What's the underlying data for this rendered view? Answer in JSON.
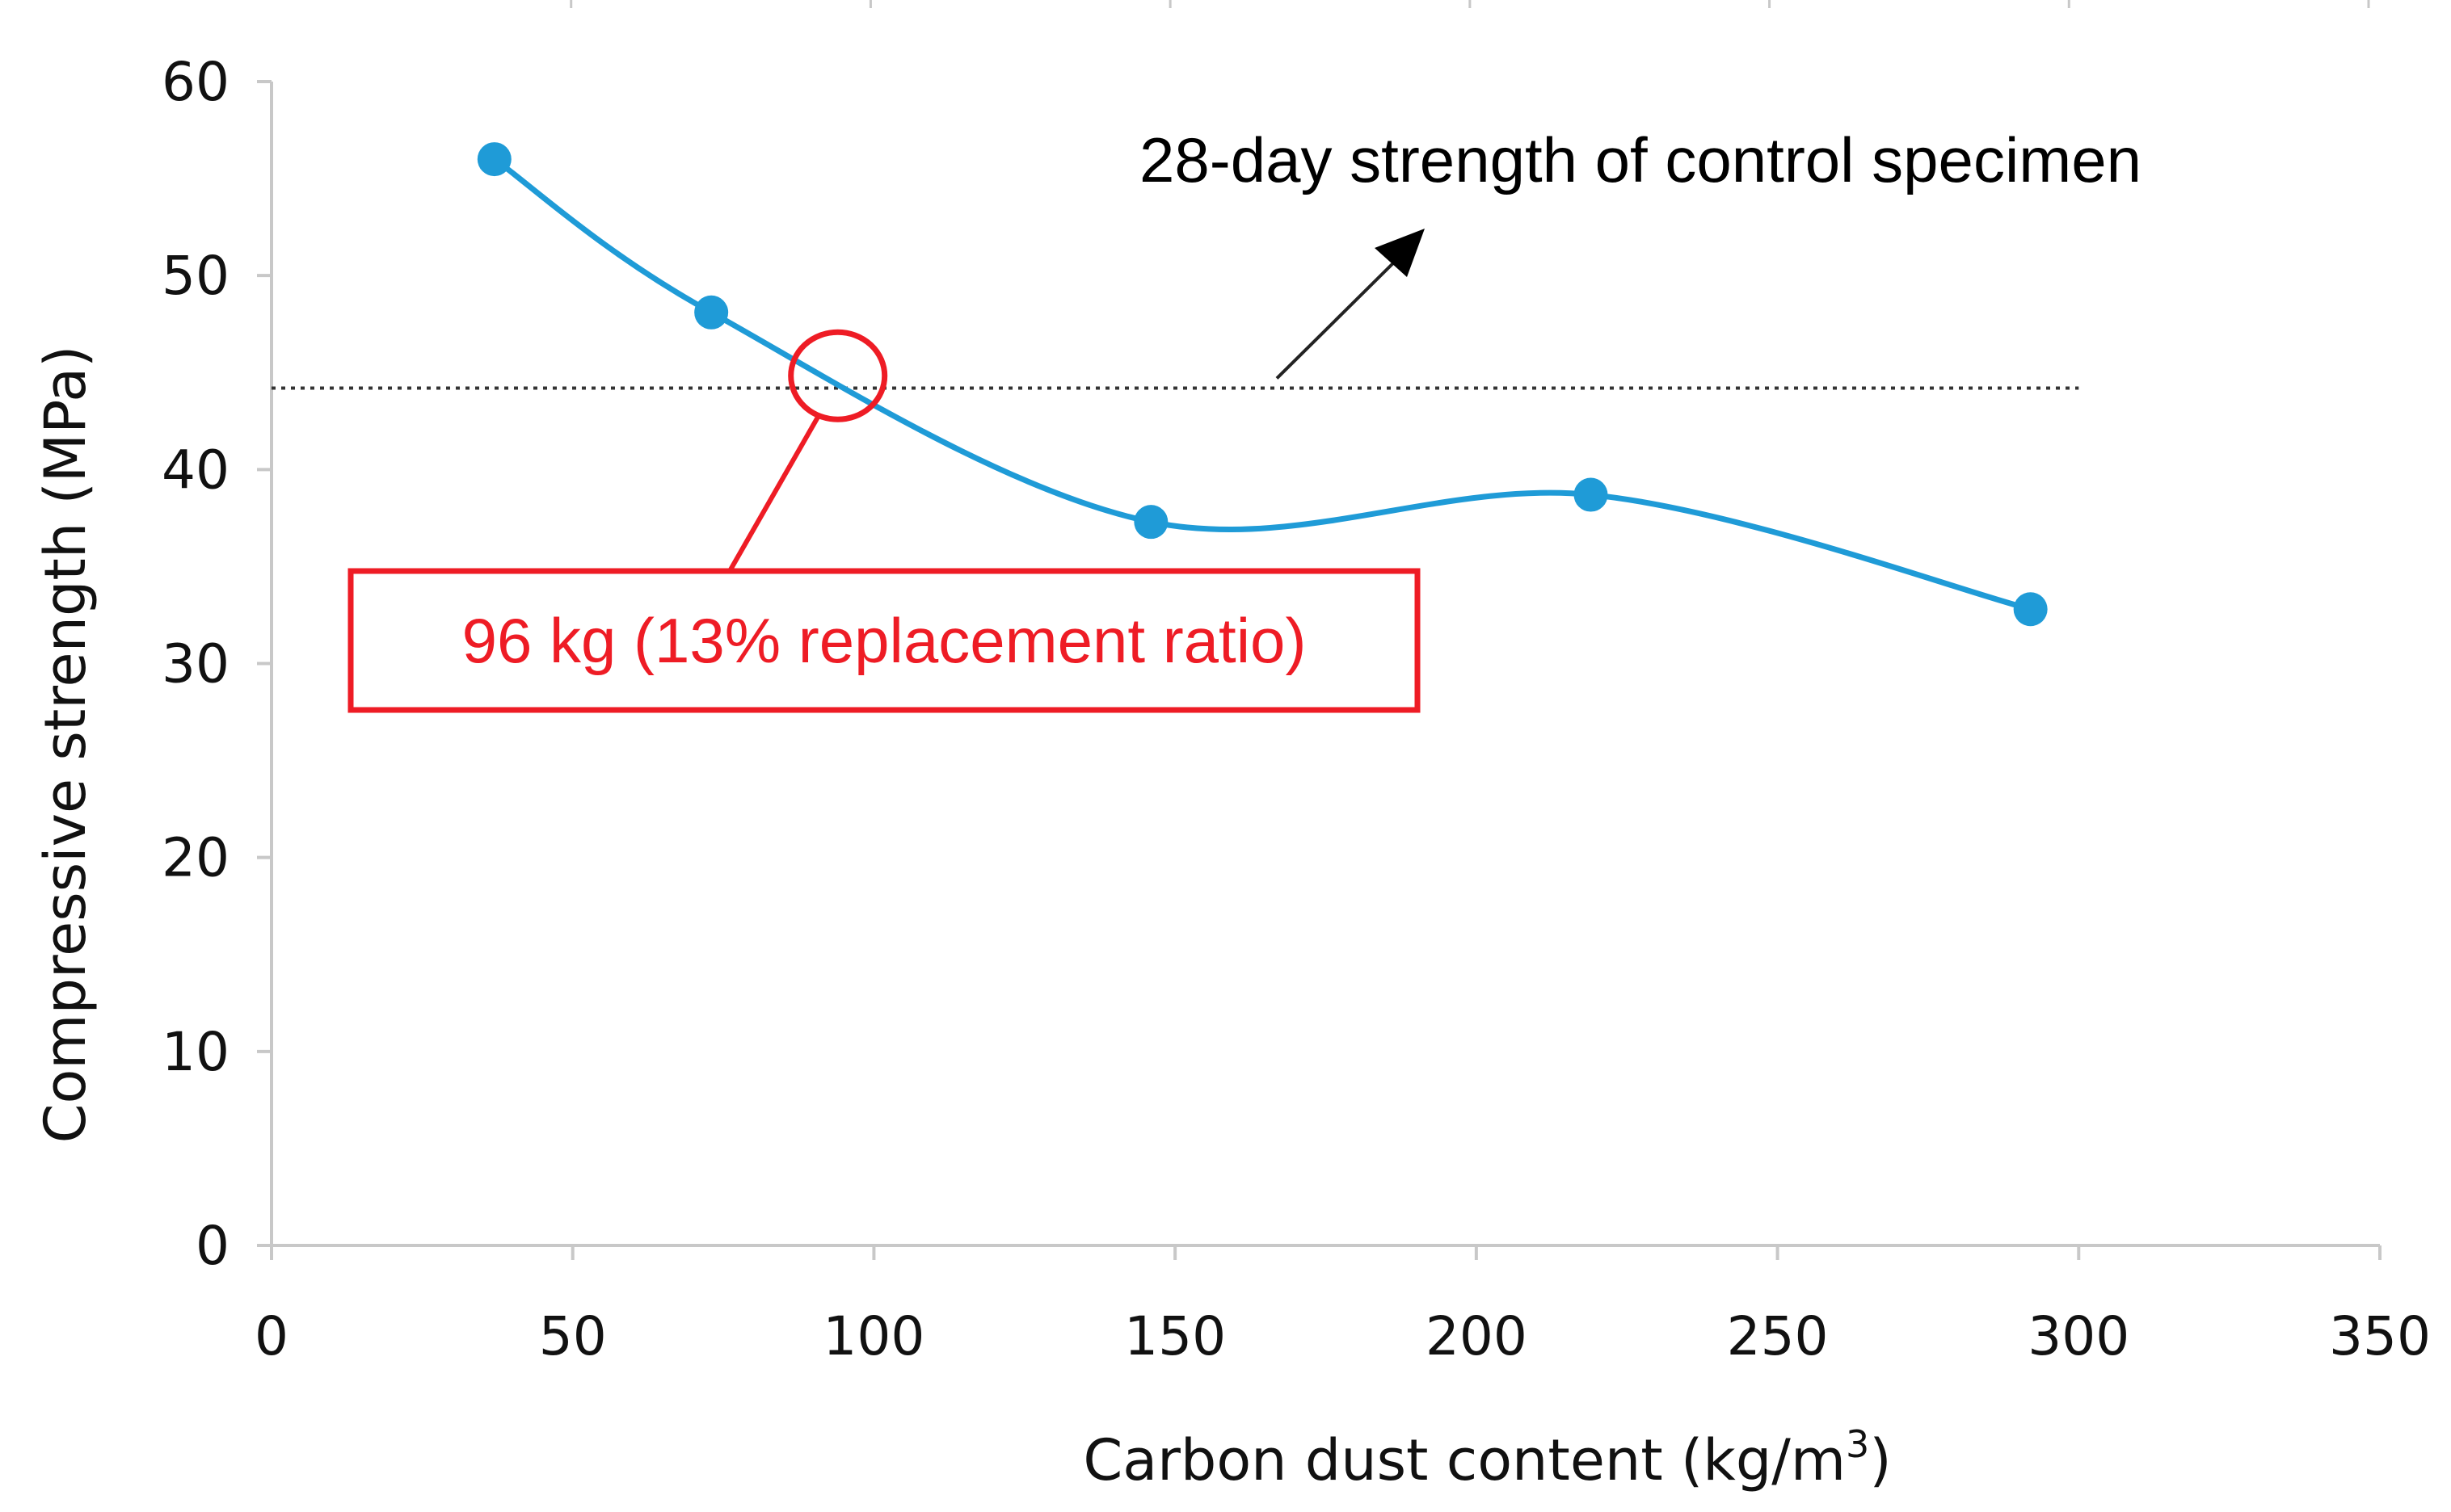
{
  "chart_data": {
    "type": "line",
    "title": "",
    "xlabel": "Carbon dust content (kg/m",
    "xlabel_superscript": "3",
    "xlabel_suffix": ")",
    "ylabel": "Compressive strength (MPa)",
    "xlim": [
      0,
      350
    ],
    "ylim": [
      0,
      60
    ],
    "x_ticks": [
      0,
      50,
      100,
      150,
      200,
      250,
      300,
      350
    ],
    "y_ticks": [
      0,
      10,
      20,
      30,
      40,
      50,
      60
    ],
    "x_tick_labels": [
      "0",
      "50",
      "100",
      "150",
      "200",
      "250",
      "300",
      "350"
    ],
    "y_tick_labels": [
      "0",
      "10",
      "20",
      "30",
      "40",
      "50",
      "60"
    ],
    "grid": false,
    "smooth": true,
    "series": [
      {
        "name": "Compressive strength",
        "color": "#1f9bd7",
        "x": [
          37,
          73,
          146,
          219,
          292
        ],
        "y": [
          56.0,
          48.1,
          37.3,
          38.7,
          32.8
        ]
      }
    ],
    "reference_line": {
      "label": "28-day strength of control specimen",
      "y": 44.2,
      "x_range": [
        0,
        300
      ],
      "style": "dotted",
      "color": "#333333"
    },
    "callout": {
      "label": "96 kg (13% replacement ratio)",
      "x": 94,
      "y": 44.5,
      "color": "#ee1c25"
    }
  },
  "colors": {
    "axis": "#c8c8c8",
    "series": "#1f9bd7",
    "callout": "#ee1c25",
    "text": "#111111"
  }
}
